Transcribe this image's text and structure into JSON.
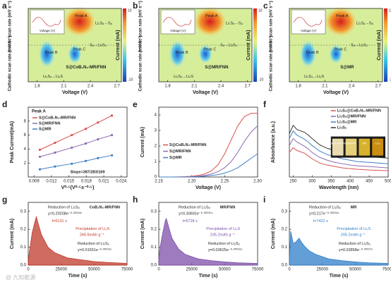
{
  "chart_data": [
    {
      "type": "heatmap",
      "label": "a",
      "xlabel": "Voltage (V)",
      "ylabels": [
        "Anodic scan rate (mV s⁻¹)",
        "Cathodic scan rate (mV s⁻¹)"
      ],
      "xlim": [
        1.7,
        2.75
      ],
      "xticks": [
        1.8,
        2.1,
        2.4,
        2.7
      ],
      "colorbar_label": "Current (mA)",
      "colorbar_ticks": [
        -10,
        10
      ],
      "inset_xlabel": "Voltage (V)",
      "sample": "S@CoB₁N₂-MR/FNN",
      "annotations": [
        "Peak A",
        "Peak B",
        "Peak C",
        "Li₂S₈→S₈",
        "S₈→Li₂S₄",
        "Li₂S₄→Li₂S"
      ]
    },
    {
      "type": "heatmap",
      "label": "b",
      "xlabel": "Voltage (V)",
      "ylabels": [
        "Anodic scan rate (mV s⁻¹)",
        "Cathodic scan rate (mV s⁻¹)"
      ],
      "xlim": [
        1.7,
        2.75
      ],
      "xticks": [
        1.8,
        2.1,
        2.4,
        2.7
      ],
      "colorbar_label": "Current (mA)",
      "colorbar_ticks": [
        -10,
        10
      ],
      "inset_xlabel": "Voltage (V)",
      "sample": "S@MR/FNN",
      "annotations": [
        "Peak A",
        "Peak B",
        "Peak C",
        "Li₂S₈→S₈",
        "S₈→Li₂S₄",
        "Li₂S₄→Li₂S"
      ]
    },
    {
      "type": "heatmap",
      "label": "c",
      "xlabel": "Voltage (V)",
      "ylabels": [
        "Anodic scan rate (mV s⁻¹)",
        "Cathodic scan rate (mV s⁻¹)"
      ],
      "xlim": [
        1.7,
        2.75
      ],
      "xticks": [
        1.8,
        2.1,
        2.4,
        2.7
      ],
      "colorbar_label": "Current (mA)",
      "colorbar_ticks": [
        -10,
        10
      ],
      "inset_xlabel": "Voltage (V)",
      "sample": "S@MR",
      "annotations": [
        "Peak A",
        "Peak B",
        "Peak C",
        "Li₂S₈→S₈",
        "S₈→Li₂S₄",
        "Li₂S₄→Li₂S"
      ]
    },
    {
      "type": "line",
      "markers": true,
      "label": "d",
      "title": "Peak A",
      "xlabel": "V⁰·⁵(V⁰·⁵s⁻⁰·⁵)",
      "ylabel": "Peak Current(mA)",
      "xlim": [
        0.008,
        0.025
      ],
      "xticks": [
        0.009,
        0.012,
        0.015,
        0.018,
        0.021,
        0.024
      ],
      "ylim": [
        0,
        10
      ],
      "yticks": [
        2,
        4,
        6,
        8
      ],
      "legend": "upper left",
      "annotations": [
        "Slope=387/283/169"
      ],
      "x": [
        0.01,
        0.0126,
        0.0155,
        0.0179,
        0.02,
        0.0224
      ],
      "series": [
        {
          "name": "S@CoB₁N₂-MR/FNN",
          "color": "#d9534f",
          "values": [
            3.9,
            4.9,
            6.0,
            6.9,
            7.8,
            8.8
          ]
        },
        {
          "name": "S@MR/FNN",
          "color": "#8e6bb0",
          "values": [
            2.9,
            3.5,
            4.2,
            4.8,
            5.4,
            6.0
          ]
        },
        {
          "name": "S@MR",
          "color": "#3f7fc4",
          "values": [
            1.1,
            1.5,
            1.9,
            2.3,
            2.7,
            3.1
          ]
        }
      ]
    },
    {
      "type": "line",
      "label": "e",
      "xlabel": "Voltage (V)",
      "ylabel": "Current (mA)",
      "xlim": [
        2.15,
        2.3
      ],
      "xticks": [
        2.15,
        {
          "value": 2.2,
          "label": "2.20"
        },
        2.25,
        {
          "value": 2.3,
          "label": "2.30"
        }
      ],
      "ylim": [
        0,
        4.5
      ],
      "yticks": [
        0,
        1,
        2,
        3,
        4
      ],
      "legend": "center left",
      "x": [
        2.15,
        2.17,
        2.19,
        2.2,
        2.21,
        2.22,
        2.23,
        2.24,
        2.25,
        2.26,
        2.27,
        2.28,
        2.29,
        2.3
      ],
      "series": [
        {
          "name": "S@CoB₁N₂-MR/FNN",
          "color": "#d9534f",
          "values": [
            0,
            0,
            0.02,
            0.05,
            0.1,
            0.2,
            0.4,
            0.8,
            1.5,
            2.4,
            3.3,
            3.9,
            4.1,
            4.1
          ]
        },
        {
          "name": "S@MR/FNN",
          "color": "#8e6bb0",
          "values": [
            0,
            0,
            0,
            0.02,
            0.05,
            0.1,
            0.2,
            0.35,
            0.6,
            1.0,
            1.6,
            2.3,
            2.9,
            3.3
          ]
        },
        {
          "name": "S@MR",
          "color": "#3f7fc4",
          "values": [
            0,
            0,
            0,
            0,
            0.02,
            0.05,
            0.1,
            0.15,
            0.25,
            0.4,
            0.6,
            0.9,
            1.2,
            1.5
          ]
        }
      ]
    },
    {
      "type": "line",
      "label": "f",
      "xlabel": "Wavelength (nm)",
      "ylabel": "Absorbance (a.u.)",
      "xlim": [
        240,
        500
      ],
      "xticks": [
        250,
        300,
        350,
        400,
        450,
        500
      ],
      "ylim": [
        0,
        1
      ],
      "legend": "upper right",
      "vials": [
        "CoB₁N₂-MR/FNN",
        "MR/FNN",
        "MR",
        "Li₂S₆"
      ],
      "x": [
        240,
        250,
        260,
        270,
        280,
        290,
        300,
        320,
        340,
        360,
        380,
        400,
        420,
        450,
        500
      ],
      "series": [
        {
          "name": "Li₂S₆@CoB₁N₂-MR/FNN",
          "color": "#d9534f",
          "values": [
            0.35,
            0.42,
            0.38,
            0.36,
            0.34,
            0.3,
            0.26,
            0.2,
            0.17,
            0.15,
            0.13,
            0.12,
            0.11,
            0.1,
            0.09
          ]
        },
        {
          "name": "Li₂S₆@MR/FNN",
          "color": "#8e6bb0",
          "values": [
            0.45,
            0.55,
            0.5,
            0.47,
            0.44,
            0.4,
            0.35,
            0.28,
            0.24,
            0.21,
            0.19,
            0.17,
            0.16,
            0.15,
            0.13
          ]
        },
        {
          "name": "Li₂S₆@MR",
          "color": "#3f7fc4",
          "values": [
            0.55,
            0.66,
            0.6,
            0.57,
            0.54,
            0.5,
            0.45,
            0.37,
            0.32,
            0.29,
            0.26,
            0.24,
            0.22,
            0.21,
            0.19
          ]
        },
        {
          "name": "Li₂S₆",
          "color": "#333333",
          "values": [
            0.62,
            0.74,
            0.68,
            0.66,
            0.64,
            0.6,
            0.55,
            0.46,
            0.41,
            0.38,
            0.35,
            0.33,
            0.31,
            0.29,
            0.27
          ]
        }
      ]
    },
    {
      "type": "area",
      "label": "g",
      "color": "#c0392b",
      "xlabel": "Time (s)",
      "ylabel": "Current (mA)",
      "xlim": [
        0,
        75000
      ],
      "xticks": [
        0,
        25000,
        50000,
        75000
      ],
      "ylim": [
        0,
        0.35
      ],
      "yticks": [
        {
          "value": 0,
          "label": "0.0"
        },
        {
          "value": 0.1,
          "label": "0.1"
        },
        {
          "value": 0.2,
          "label": "0.2"
        },
        {
          "value": 0.3,
          "label": "0.3"
        }
      ],
      "annotations": [
        "CoB₁N₂-MR/FNN",
        "Reduction of Li₂S₈",
        "y=0.29208e⁻⁰·⁰⁰⁰¹³ˣ",
        "t=6131 s",
        "Precipitation of Li₂S",
        "266.6mAh g⁻¹",
        "Reduction of Li₂S₆",
        "y=0.01551e⁻⁰·⁰⁰⁰¹¹ˣ"
      ],
      "x": [
        0,
        1000,
        3000,
        5000,
        6131,
        8000,
        10000,
        15000,
        20000,
        30000,
        40000,
        50000,
        60000,
        75000
      ],
      "values": [
        0.02,
        0.08,
        0.18,
        0.24,
        0.27,
        0.22,
        0.17,
        0.1,
        0.07,
        0.04,
        0.03,
        0.02,
        0.015,
        0.01
      ]
    },
    {
      "type": "area",
      "label": "h",
      "color": "#7d4fa8",
      "xlabel": "Time (s)",
      "ylabel": "Current (mA)",
      "xlim": [
        0,
        75000
      ],
      "xticks": [
        0,
        25000,
        50000,
        75000
      ],
      "ylim": [
        0,
        0.35
      ],
      "yticks": [
        {
          "value": 0,
          "label": "0.0"
        },
        {
          "value": 0.1,
          "label": "0.1"
        },
        {
          "value": 0.2,
          "label": "0.2"
        },
        {
          "value": 0.3,
          "label": "0.3"
        }
      ],
      "annotations": [
        "MR/FNN",
        "Reduction of Li₂S₈",
        "y=0.30691e⁻⁰·⁰⁰⁰¹⁵ˣ",
        "t=5728 s",
        "Precipitation of Li₂S",
        "235.2mAh g⁻¹",
        "Reduction of Li₂S₆",
        "y=0.03625e⁻⁰·⁰⁰⁰¹⁶ˣ"
      ],
      "x": [
        0,
        1000,
        3000,
        5000,
        5728,
        8000,
        10000,
        15000,
        20000,
        30000,
        40000,
        50000,
        60000,
        75000
      ],
      "values": [
        0.03,
        0.1,
        0.18,
        0.25,
        0.26,
        0.2,
        0.15,
        0.09,
        0.06,
        0.035,
        0.025,
        0.018,
        0.013,
        0.01
      ]
    },
    {
      "type": "area",
      "label": "i",
      "color": "#2f7fc8",
      "xlabel": "Time (s)",
      "ylabel": "Current (mA)",
      "xlim": [
        0,
        75000
      ],
      "xticks": [
        0,
        25000,
        50000,
        75000
      ],
      "ylim": [
        0,
        0.35
      ],
      "yticks": [
        {
          "value": 0,
          "label": "0.0"
        },
        {
          "value": 0.1,
          "label": "0.1"
        },
        {
          "value": 0.2,
          "label": "0.2"
        },
        {
          "value": 0.3,
          "label": "0.3"
        }
      ],
      "annotations": [
        "MR",
        "Reduction of Li₂S₈",
        "y=0.217e⁻⁰·⁰⁰⁰¹⁹ˣ",
        "t=7422 s",
        "Precipitation of Li₂S",
        "205.2mAh g⁻¹",
        "Reduction of Li₂S₆",
        "y=0.02858e⁻⁰·⁰⁰⁰¹⁷ˣ"
      ],
      "x": [
        0,
        1000,
        3000,
        5000,
        7422,
        9000,
        11000,
        15000,
        20000,
        30000,
        40000,
        50000,
        60000,
        75000
      ],
      "values": [
        0.03,
        0.19,
        0.12,
        0.13,
        0.15,
        0.13,
        0.11,
        0.08,
        0.06,
        0.035,
        0.025,
        0.018,
        0.013,
        0.01
      ]
    }
  ],
  "watermark": "@ 九知能源"
}
